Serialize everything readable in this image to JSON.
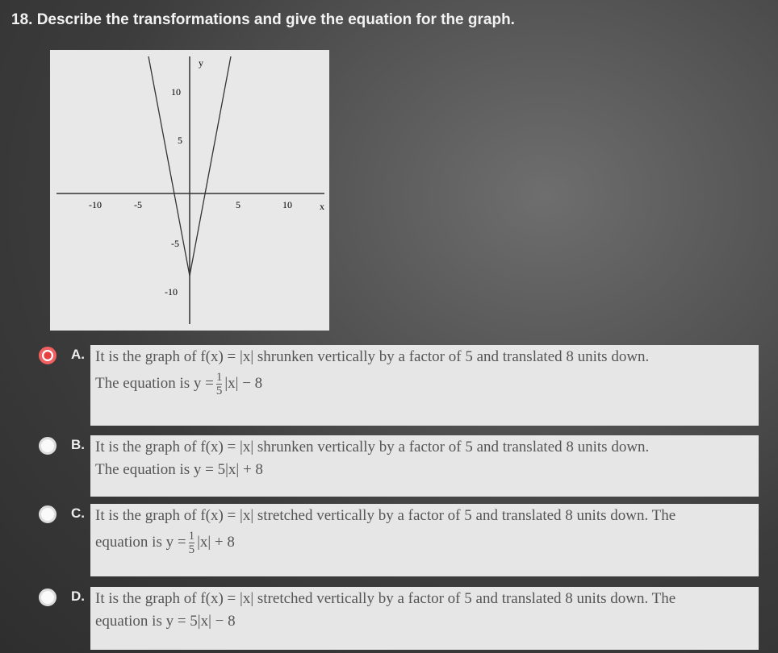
{
  "question": "18. Describe the transformations and give the equation for the graph.",
  "graph": {
    "x_label": "x",
    "y_label": "y",
    "x_ticks": [
      "-10",
      "-5",
      "5",
      "10"
    ],
    "y_ticks": [
      "10",
      "5",
      "-5",
      "-10"
    ]
  },
  "options": [
    {
      "letter": "A.",
      "selected": true,
      "line1": "It is the graph of f(x) = |x| shrunken vertically by a factor of 5 and translated 8 units down.",
      "lead": "The equation is y =",
      "num": "1",
      "den": "5",
      "rest": "|x| − 8"
    },
    {
      "letter": "B.",
      "selected": false,
      "line1": "It is the graph of f(x) = |x| shrunken vertically by a factor of 5 and translated 8 units down.",
      "lead": "The equation is y = 5|x| + 8"
    },
    {
      "letter": "C.",
      "selected": false,
      "line1": "It is the graph of f(x) = |x| stretched vertically by a factor of 5 and translated 8 units down. The",
      "lead": "equation is y =",
      "num": "1",
      "den": "5",
      "rest": "|x| + 8"
    },
    {
      "letter": "D.",
      "selected": false,
      "line1": "It is the graph of f(x) = |x| stretched vertically by a factor of 5 and translated 8 units down. The",
      "lead": "equation is y = 5|x| − 8"
    }
  ]
}
